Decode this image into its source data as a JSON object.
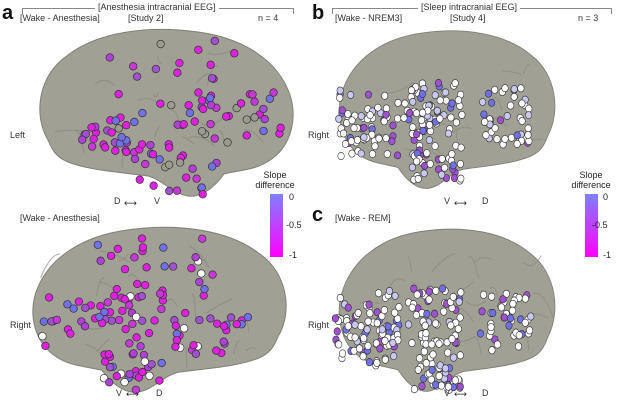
{
  "panels": {
    "a": {
      "letter": "a",
      "condition_top": "[Wake - Anesthesia]",
      "condition_bottom": "[Wake - Anesthesia]",
      "hemisphere_top": "Left",
      "hemisphere_bottom": "Right",
      "orient_top_left": "D",
      "orient_top_right": "V",
      "orient_bottom_left": "V",
      "orient_bottom_right": "D"
    },
    "b": {
      "letter": "b",
      "condition": "[Wake - NREM3]",
      "hemisphere": "Right",
      "orient_left": "V",
      "orient_right": "D"
    },
    "c": {
      "letter": "c",
      "condition": "[Wake - REM]",
      "hemisphere": "Right",
      "orient_left": "V",
      "orient_right": "D"
    }
  },
  "study_headers": {
    "anesthesia": {
      "title": "[Anesthesia intracranial EEG]",
      "subtitle": "[Study 2]",
      "n": "n = 4"
    },
    "sleep": {
      "title": "[Sleep intracranial EEG]",
      "subtitle": "[Study 4]",
      "n": "n = 3"
    }
  },
  "colorbar": {
    "title_line1": "Slope",
    "title_line2": "difference",
    "ticks": [
      "0",
      "-0.5",
      "-1"
    ],
    "color_top": "#8080ff",
    "color_bottom": "#ff00ff"
  },
  "colors": {
    "brain_fill": "#9c9b90",
    "electrode_white": "#ffffff",
    "electrode_magenta": "#e020e0",
    "electrode_purple": "#a050d0",
    "electrode_blue": "#7070e8"
  }
}
